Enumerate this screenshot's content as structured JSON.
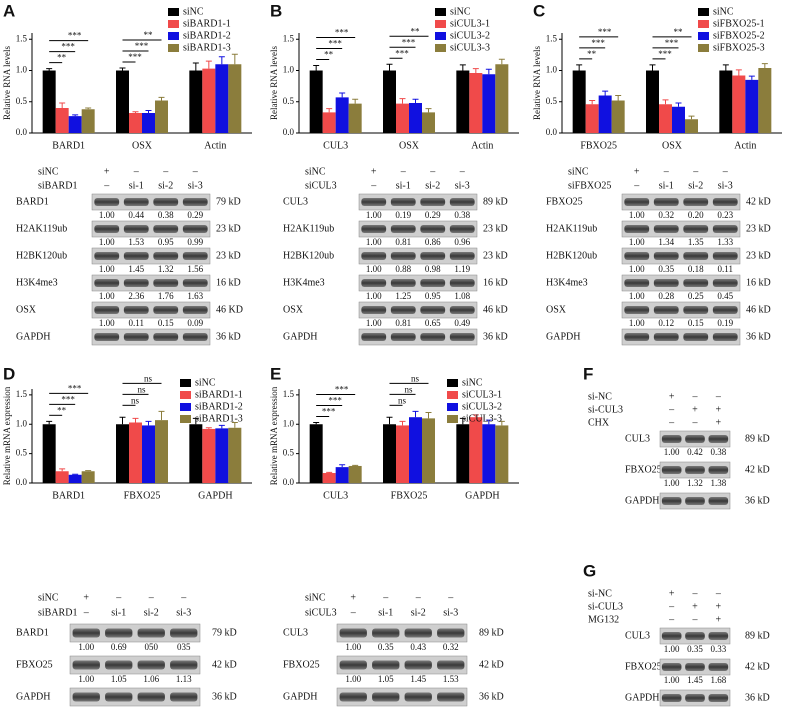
{
  "panels": [
    {
      "label": "A",
      "chart": {
        "type": "bar",
        "ylabel": "Relative RNA levels",
        "ylim": [
          0,
          1.6
        ],
        "yticks": [
          {
            "value": 0,
            "label": "0.0"
          },
          0.5,
          {
            "value": 1,
            "label": "1.0"
          },
          1.5
        ],
        "categories": [
          "BARD1",
          "OSX",
          "Actin"
        ],
        "series": [
          {
            "name": "siNC",
            "color": "#000000",
            "values": [
              1.0,
              1.0,
              1.0
            ],
            "errors": [
              0.03,
              0.04,
              0.12
            ]
          },
          {
            "name": "siBARD1-1",
            "color": "#f04a4a",
            "values": [
              0.4,
              0.32,
              1.03
            ],
            "errors": [
              0.08,
              0.02,
              0.12
            ]
          },
          {
            "name": "siBARD1-2",
            "color": "#1010e0",
            "values": [
              0.27,
              0.32,
              1.1
            ],
            "errors": [
              0.02,
              0.04,
              0.12
            ]
          },
          {
            "name": "siBARD1-3",
            "color": "#8b7d3c",
            "values": [
              0.38,
              0.52,
              1.1
            ],
            "errors": [
              0.02,
              0.05,
              0.16
            ]
          }
        ],
        "significance": [
          [
            "**",
            "***",
            "***"
          ],
          [
            "***",
            "***",
            "**"
          ],
          []
        ]
      },
      "blot": {
        "conditions": [
          {
            "name": "siNC",
            "lanes": [
              "+",
              "–",
              "–",
              "–"
            ]
          },
          {
            "name": "siBARD1",
            "lanes": [
              "–",
              "si-1",
              "si-2",
              "si-3"
            ]
          }
        ],
        "rows": [
          {
            "name": "BARD1",
            "size": "79 kD",
            "quant": [
              "1.00",
              "0.44",
              "0.38",
              "0.29"
            ]
          },
          {
            "name": "H2AK119ub",
            "size": "23 kD",
            "quant": [
              "1.00",
              "1.53",
              "0.95",
              "0.99"
            ]
          },
          {
            "name": "H2BK120ub",
            "size": "23 kD",
            "quant": [
              "1.00",
              "1.45",
              "1.32",
              "1.56"
            ]
          },
          {
            "name": "H3K4me3",
            "size": "16 kD",
            "quant": [
              "1.00",
              "2.36",
              "1.76",
              "1.63"
            ]
          },
          {
            "name": "OSX",
            "size": "46 KD",
            "quant": [
              "1.00",
              "0.11",
              "0.15",
              "0.09"
            ]
          },
          {
            "name": "GAPDH",
            "size": "36 kD",
            "quant": []
          }
        ]
      }
    },
    {
      "label": "B",
      "chart": {
        "type": "bar",
        "ylabel": "Relative RNA levels",
        "ylim": [
          0,
          1.6
        ],
        "yticks": [
          {
            "value": 0,
            "label": "0.0"
          },
          0.5,
          {
            "value": 1,
            "label": "1.0"
          },
          1.5
        ],
        "categories": [
          "CUL3",
          "OSX",
          "Actin"
        ],
        "series": [
          {
            "name": "siNC",
            "color": "#000000",
            "values": [
              1.0,
              1.0,
              1.0
            ],
            "errors": [
              0.08,
              0.1,
              0.09
            ]
          },
          {
            "name": "siCUL3-1",
            "color": "#f04a4a",
            "values": [
              0.33,
              0.47,
              0.96
            ],
            "errors": [
              0.06,
              0.08,
              0.07
            ]
          },
          {
            "name": "siCUL3-2",
            "color": "#1010e0",
            "values": [
              0.57,
              0.48,
              0.94
            ],
            "errors": [
              0.07,
              0.06,
              0.08
            ]
          },
          {
            "name": "siCUL3-3",
            "color": "#8b7d3c",
            "values": [
              0.47,
              0.33,
              1.1
            ],
            "errors": [
              0.07,
              0.06,
              0.08
            ]
          }
        ],
        "significance": [
          [
            "**",
            "***",
            "***"
          ],
          [
            "***",
            "***",
            "**"
          ],
          []
        ]
      },
      "blot": {
        "conditions": [
          {
            "name": "siNC",
            "lanes": [
              "+",
              "–",
              "–",
              "–"
            ]
          },
          {
            "name": "siCUL3",
            "lanes": [
              "–",
              "si-1",
              "si-2",
              "si-3"
            ]
          }
        ],
        "rows": [
          {
            "name": "CUL3",
            "size": "89 kD",
            "quant": [
              "1.00",
              "0.19",
              "0.29",
              "0.38"
            ]
          },
          {
            "name": "H2AK119ub",
            "size": "23 kD",
            "quant": [
              "1.00",
              "0.81",
              "0.86",
              "0.96"
            ]
          },
          {
            "name": "H2BK120ub",
            "size": "23 kD",
            "quant": [
              "1.00",
              "0.88",
              "0.98",
              "1.19"
            ]
          },
          {
            "name": "H3K4me3",
            "size": "16 kD",
            "quant": [
              "1.00",
              "1.25",
              "0.95",
              "1.08"
            ]
          },
          {
            "name": "OSX",
            "size": "46 kD",
            "quant": [
              "1.00",
              "0.81",
              "0.65",
              "0.49"
            ]
          },
          {
            "name": "GAPDH",
            "size": "36 kD",
            "quant": []
          }
        ]
      }
    },
    {
      "label": "C",
      "chart": {
        "type": "bar",
        "ylabel": "Relative RNA levels",
        "ylim": [
          0,
          1.6
        ],
        "yticks": [
          {
            "value": 0,
            "label": "0.0"
          },
          0.5,
          {
            "value": 1,
            "label": "1.0"
          },
          1.5
        ],
        "categories": [
          "FBXO25",
          "OSX",
          "Actin"
        ],
        "series": [
          {
            "name": "siNC",
            "color": "#000000",
            "values": [
              1.0,
              1.0,
              1.0
            ],
            "errors": [
              0.09,
              0.09,
              0.09
            ]
          },
          {
            "name": "siFBXO25-1",
            "color": "#f04a4a",
            "values": [
              0.46,
              0.46,
              0.92
            ],
            "errors": [
              0.06,
              0.07,
              0.09
            ]
          },
          {
            "name": "siFBXO25-2",
            "color": "#1010e0",
            "values": [
              0.6,
              0.42,
              0.85
            ],
            "errors": [
              0.07,
              0.06,
              0.06
            ]
          },
          {
            "name": "siFBXO25-3",
            "color": "#8b7d3c",
            "values": [
              0.52,
              0.22,
              1.04
            ],
            "errors": [
              0.08,
              0.05,
              0.07
            ]
          }
        ],
        "significance": [
          [
            "**",
            "***",
            "***"
          ],
          [
            "***",
            "***",
            "**"
          ],
          []
        ]
      },
      "blot": {
        "conditions": [
          {
            "name": "siNC",
            "lanes": [
              "+",
              "–",
              "–",
              "–"
            ]
          },
          {
            "name": "siFBXO25",
            "lanes": [
              "–",
              "si-1",
              "si-2",
              "si-3"
            ]
          }
        ],
        "rows": [
          {
            "name": "FBXO25",
            "size": "42 kD",
            "quant": [
              "1.00",
              "0.32",
              "0.20",
              "0.23"
            ]
          },
          {
            "name": "H2AK119ub",
            "size": "23 kD",
            "quant": [
              "1.00",
              "1.34",
              "1.35",
              "1.33"
            ]
          },
          {
            "name": "H2BK120ub",
            "size": "23 kD",
            "quant": [
              "1.00",
              "0.35",
              "0.18",
              "0.11"
            ]
          },
          {
            "name": "H3K4me3",
            "size": "16 kD",
            "quant": [
              "1.00",
              "0.28",
              "0.25",
              "0.45"
            ]
          },
          {
            "name": "OSX",
            "size": "46 kD",
            "quant": [
              "1.00",
              "0.12",
              "0.15",
              "0.19"
            ]
          },
          {
            "name": "GAPDH",
            "size": "36 kD",
            "quant": []
          }
        ]
      }
    },
    {
      "label": "D",
      "chart": {
        "type": "bar",
        "ylabel": "Relative mRNA expression",
        "ylim": [
          0,
          1.6
        ],
        "yticks": [
          {
            "value": 0,
            "label": "0.0"
          },
          0.5,
          {
            "value": 1,
            "label": "1.0"
          },
          1.5
        ],
        "categories": [
          "BARD1",
          "FBXO25",
          "GAPDH"
        ],
        "series": [
          {
            "name": "siNC",
            "color": "#000000",
            "values": [
              1.0,
              1.0,
              1.0
            ],
            "errors": [
              0.05,
              0.12,
              0.1
            ]
          },
          {
            "name": "siBARD1-1",
            "color": "#f04a4a",
            "values": [
              0.2,
              1.03,
              0.92
            ],
            "errors": [
              0.04,
              0.07,
              0.02
            ]
          },
          {
            "name": "siBARD1-2",
            "color": "#1010e0",
            "values": [
              0.14,
              0.98,
              0.93
            ],
            "errors": [
              0.01,
              0.07,
              0.05
            ]
          },
          {
            "name": "siBARD1-3",
            "color": "#8b7d3c",
            "values": [
              0.2,
              1.07,
              0.94
            ],
            "errors": [
              0.01,
              0.15,
              0.09
            ]
          }
        ],
        "significance": [
          [
            "**",
            "***",
            "***"
          ],
          [
            "ns",
            "ns",
            "ns"
          ],
          []
        ]
      },
      "blot": {
        "conditions": [
          {
            "name": "siNC",
            "lanes": [
              "+",
              "–",
              "–",
              "–"
            ]
          },
          {
            "name": "siBARD1",
            "lanes": [
              "–",
              "si-1",
              "si-2",
              "si-3"
            ]
          }
        ],
        "rows": [
          {
            "name": "BARD1",
            "size": "79 kD",
            "quant": [
              "1.00",
              "0.69",
              "050",
              "035"
            ]
          },
          {
            "name": "FBXO25",
            "size": "42 kD",
            "quant": [
              "1.00",
              "1.05",
              "1.06",
              "1.13"
            ]
          },
          {
            "name": "GAPDH",
            "size": "36 kD",
            "quant": []
          }
        ]
      }
    },
    {
      "label": "E",
      "chart": {
        "type": "bar",
        "ylabel": "Relative mRNA expression",
        "ylim": [
          0,
          1.6
        ],
        "yticks": [
          {
            "value": 0,
            "label": "0.0"
          },
          0.5,
          {
            "value": 1,
            "label": "1.0"
          },
          1.5
        ],
        "categories": [
          "CUL3",
          "FBXO25",
          "GAPDH"
        ],
        "series": [
          {
            "name": "siNC",
            "color": "#000000",
            "values": [
              1.0,
              1.0,
              1.0
            ],
            "errors": [
              0.03,
              0.12,
              0.1
            ]
          },
          {
            "name": "siCUL3-1",
            "color": "#f04a4a",
            "values": [
              0.17,
              0.98,
              1.12
            ],
            "errors": [
              0.01,
              0.07,
              0.04
            ]
          },
          {
            "name": "siCUL3-2",
            "color": "#1010e0",
            "values": [
              0.27,
              1.12,
              1.0
            ],
            "errors": [
              0.04,
              0.1,
              0.07
            ]
          },
          {
            "name": "siCUL3-3",
            "color": "#8b7d3c",
            "values": [
              0.29,
              1.1,
              0.98
            ],
            "errors": [
              0.01,
              0.1,
              0.07
            ]
          }
        ],
        "significance": [
          [
            "***",
            "***",
            "***"
          ],
          [
            "ns",
            "ns",
            "ns"
          ],
          []
        ]
      },
      "blot": {
        "conditions": [
          {
            "name": "siNC",
            "lanes": [
              "+",
              "–",
              "–",
              "–"
            ]
          },
          {
            "name": "siCUL3",
            "lanes": [
              "–",
              "si-1",
              "si-2",
              "si-3"
            ]
          }
        ],
        "rows": [
          {
            "name": "CUL3",
            "size": "89 kD",
            "quant": [
              "1.00",
              "0.35",
              "0.43",
              "0.32"
            ]
          },
          {
            "name": "FBXO25",
            "size": "42 kD",
            "quant": [
              "1.00",
              "1.05",
              "1.45",
              "1.53"
            ]
          },
          {
            "name": "GAPDH",
            "size": "36 kD",
            "quant": []
          }
        ]
      }
    },
    {
      "label": "F",
      "blot": {
        "conditions": [
          {
            "name": "si-NC",
            "lanes": [
              "+",
              "–",
              "–"
            ]
          },
          {
            "name": "si-CUL3",
            "lanes": [
              "–",
              "+",
              "+"
            ]
          },
          {
            "name": "CHX",
            "lanes": [
              "–",
              "–",
              "+"
            ]
          }
        ],
        "rows": [
          {
            "name": "CUL3",
            "size": "89 kD",
            "quant": [
              "1.00",
              "0.42",
              "0.38"
            ]
          },
          {
            "name": "FBXO25",
            "size": "42 kD",
            "quant": [
              "1.00",
              "1.32",
              "1.38"
            ]
          },
          {
            "name": "GAPDH",
            "size": "36 kD",
            "quant": []
          }
        ]
      }
    },
    {
      "label": "G",
      "blot": {
        "conditions": [
          {
            "name": "si-NC",
            "lanes": [
              "+",
              "–",
              "–"
            ]
          },
          {
            "name": "si-CUL3",
            "lanes": [
              "–",
              "+",
              "+"
            ]
          },
          {
            "name": "MG132",
            "lanes": [
              "–",
              "–",
              "+"
            ]
          }
        ],
        "rows": [
          {
            "name": "CUL3",
            "size": "89 kD",
            "quant": [
              "1.00",
              "0.35",
              "0.33"
            ]
          },
          {
            "name": "FBXO25",
            "size": "42 kD",
            "quant": [
              "1.00",
              "1.45",
              "1.68"
            ]
          },
          {
            "name": "GAPDH",
            "size": "36 kD",
            "quant": []
          }
        ]
      }
    }
  ]
}
